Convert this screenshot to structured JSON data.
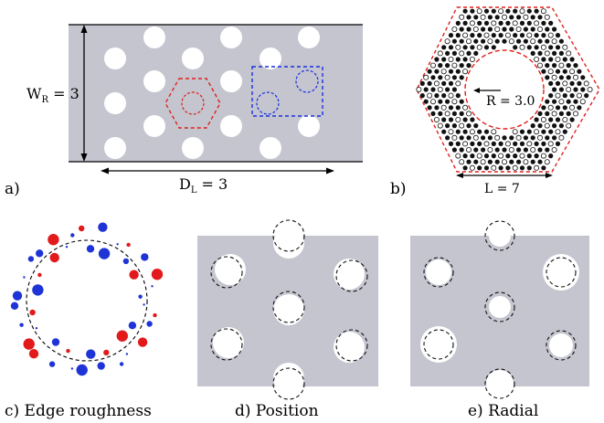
{
  "panels": {
    "a": {
      "letter": "a)",
      "width_label": "W",
      "width_sub": "R",
      "width_value": " = 3",
      "length_label": "D",
      "length_sub": "L",
      "length_value": " = 3"
    },
    "b": {
      "letter": "b)",
      "radius_label": "R = 3.0",
      "side_label": "L = 7"
    },
    "c": {
      "caption": "c) Edge roughness"
    },
    "d": {
      "caption": "d) Position"
    },
    "e": {
      "caption": "e) Radial"
    }
  },
  "colors": {
    "substrate": "#c4c5cf",
    "hole": "#ffffff",
    "highlight_hex": "#e0201b",
    "highlight_box": "#1a2fe0",
    "roughness_red": "#e31a1c",
    "roughness_blue": "#1f34d6"
  }
}
